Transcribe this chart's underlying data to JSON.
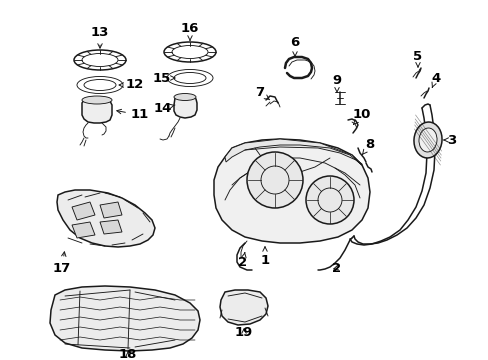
{
  "bg_color": "#ffffff",
  "line_color": "#1a1a1a",
  "text_color": "#000000",
  "fig_width": 4.89,
  "fig_height": 3.6,
  "dpi": 100,
  "label_fontsize": 9.5,
  "lw_main": 1.1,
  "lw_thin": 0.65,
  "lw_thick": 1.8
}
